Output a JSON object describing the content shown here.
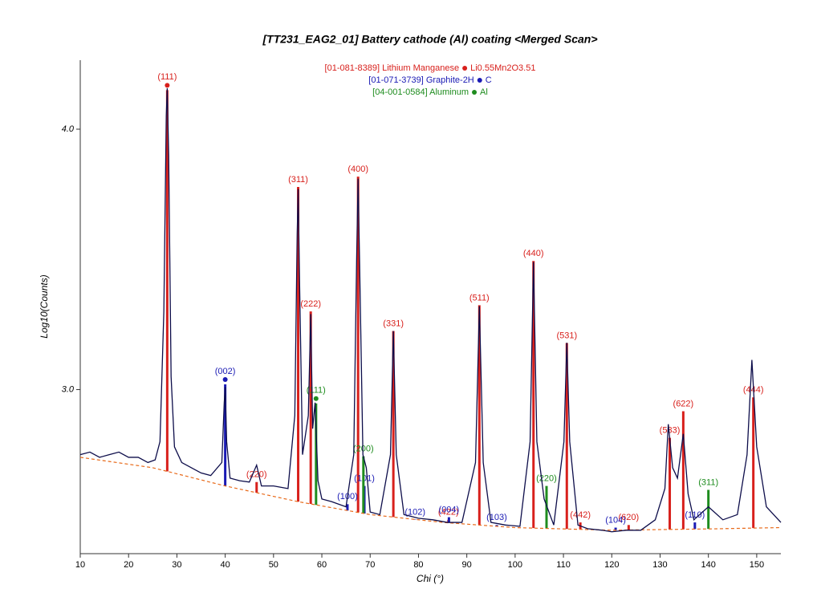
{
  "chart_data": {
    "type": "xrd",
    "title": "[TT231_EAG2_01] Battery cathode (Al) coating <Merged Scan>",
    "x_label": "Chi (°)",
    "y_label": "Log10(Counts)",
    "xlim": [
      10,
      155
    ],
    "ylim": [
      2.37,
      4.265
    ],
    "xticks": [
      10,
      20,
      30,
      40,
      50,
      60,
      70,
      80,
      90,
      100,
      110,
      120,
      130,
      140,
      150
    ],
    "yticks": [
      {
        "value": 3.0,
        "label": "3.0"
      },
      {
        "value": 4.0,
        "label": "4.0"
      }
    ],
    "scan": {
      "color": "#0d0d4a",
      "x": [
        10,
        12,
        14,
        16,
        18,
        20,
        22,
        24,
        25.5,
        26.5,
        27.3,
        27.8,
        28.0,
        28.3,
        28.8,
        29.5,
        31,
        33,
        35,
        37,
        39.3,
        39.8,
        40.0,
        40.3,
        41,
        43,
        45,
        46.5,
        47.5,
        50,
        53,
        54.4,
        54.9,
        55.1,
        55.4,
        56,
        57.2,
        57.7,
        58.1,
        58.6,
        59.2,
        60,
        62,
        65,
        66.6,
        67.2,
        67.5,
        67.8,
        68.5,
        69.2,
        70,
        72,
        74.2,
        74.8,
        75.4,
        77,
        80,
        83,
        86,
        89,
        91.8,
        92.6,
        93.4,
        95,
        98,
        101,
        103.1,
        103.8,
        104.5,
        106,
        108,
        110.1,
        110.7,
        111.3,
        113,
        115,
        118,
        120,
        123,
        126,
        129,
        131,
        131.7,
        132.6,
        133.6,
        134.8,
        135.8,
        137,
        140,
        143,
        146,
        148,
        149,
        150,
        152,
        155
      ],
      "values": [
        2.75,
        2.76,
        2.74,
        2.75,
        2.76,
        2.74,
        2.74,
        2.72,
        2.73,
        2.8,
        3.3,
        4.05,
        4.157,
        3.9,
        3.05,
        2.78,
        2.72,
        2.7,
        2.68,
        2.67,
        2.72,
        2.95,
        3.01,
        2.8,
        2.66,
        2.65,
        2.645,
        2.71,
        2.63,
        2.63,
        2.62,
        2.9,
        3.6,
        3.77,
        3.4,
        2.75,
        2.9,
        3.29,
        2.85,
        2.95,
        2.65,
        2.58,
        2.57,
        2.55,
        2.75,
        3.5,
        3.81,
        3.5,
        2.75,
        2.7,
        2.53,
        2.52,
        2.75,
        3.225,
        2.75,
        2.52,
        2.506,
        2.5,
        2.49,
        2.49,
        2.72,
        3.32,
        2.72,
        2.49,
        2.48,
        2.475,
        2.8,
        3.49,
        2.8,
        2.58,
        2.48,
        2.8,
        3.18,
        2.8,
        2.48,
        2.466,
        2.46,
        2.454,
        2.46,
        2.46,
        2.5,
        2.62,
        2.867,
        2.7,
        2.66,
        2.83,
        2.6,
        2.5,
        2.55,
        2.5,
        2.52,
        2.75,
        3.114,
        2.78,
        2.55,
        2.49
      ]
    },
    "background": {
      "color": "#e86a1a",
      "x": [
        10,
        25,
        40,
        55,
        70,
        85,
        100,
        120,
        140,
        155
      ],
      "values": [
        2.74,
        2.7,
        2.63,
        2.57,
        2.52,
        2.49,
        2.47,
        2.46,
        2.465,
        2.47
      ]
    },
    "phases": [
      {
        "name": "[01-081-8389] Lithium Manganese",
        "formula": "Li0.55Mn2O3.51",
        "color": "#d8201c",
        "peaks": [
          {
            "x": 28.0,
            "y": 4.15,
            "label": "(111)"
          },
          {
            "x": 46.5,
            "y": 2.645,
            "label": "(220)"
          },
          {
            "x": 55.1,
            "y": 3.778,
            "label": "(311)"
          },
          {
            "x": 57.7,
            "y": 3.3,
            "label": "(222)"
          },
          {
            "x": 67.5,
            "y": 3.818,
            "label": "(400)"
          },
          {
            "x": 74.8,
            "y": 3.225,
            "label": "(331)"
          },
          {
            "x": 86.2,
            "y": 2.5,
            "label": "(422)"
          },
          {
            "x": 92.6,
            "y": 3.324,
            "label": "(511)"
          },
          {
            "x": 103.8,
            "y": 3.494,
            "label": "(440)"
          },
          {
            "x": 110.7,
            "y": 3.179,
            "label": "(531)"
          },
          {
            "x": 113.5,
            "y": 2.49,
            "label": "(442)"
          },
          {
            "x": 123.5,
            "y": 2.48,
            "label": "(620)"
          },
          {
            "x": 132.0,
            "y": 2.815,
            "label": "(533)"
          },
          {
            "x": 134.8,
            "y": 2.917,
            "label": "(622)"
          },
          {
            "x": 149.3,
            "y": 2.97,
            "label": "(444)"
          }
        ]
      },
      {
        "name": "[01-071-3739] Graphite-2H",
        "formula": "C",
        "color": "#1a1ab4",
        "peaks": [
          {
            "x": 40.0,
            "y": 3.02,
            "label": "(002)"
          },
          {
            "x": 65.3,
            "y": 2.56,
            "label": "(100)"
          },
          {
            "x": 68.8,
            "y": 2.63,
            "label": "(101)"
          },
          {
            "x": 79.3,
            "y": 2.5,
            "label": "(102)"
          },
          {
            "x": 86.3,
            "y": 2.51,
            "label": "(004)"
          },
          {
            "x": 96.2,
            "y": 2.48,
            "label": "(103)"
          },
          {
            "x": 120.8,
            "y": 2.47,
            "label": "(104)"
          },
          {
            "x": 137.2,
            "y": 2.49,
            "label": "(110)"
          }
        ]
      },
      {
        "name": "[04-001-0584] Aluminum",
        "formula": "Al",
        "color": "#1e8c1e",
        "peaks": [
          {
            "x": 58.8,
            "y": 2.947,
            "label": "(111)"
          },
          {
            "x": 68.6,
            "y": 2.744,
            "label": "(200)"
          },
          {
            "x": 106.5,
            "y": 2.63,
            "label": "(220)"
          },
          {
            "x": 140.0,
            "y": 2.615,
            "label": "(311)"
          }
        ]
      }
    ]
  }
}
